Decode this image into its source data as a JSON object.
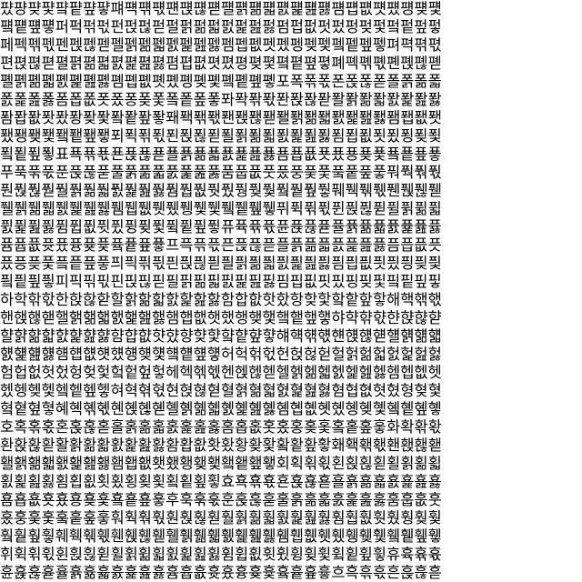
{
  "glyph_sheet": {
    "rows": [
      "퍘퍙퍚퍛퍜퍝퍞퍟퍠퍡퍢퍣퍤퍥퍦퍧퍨퍩퍪퍫퍬퍭퍮퍯퍰퍱퍲퍳퍴퍵퍶퍷",
      "퍸퍹퍺퍻퍼퍽퍾퍿펀펁펂펃펄펅펆펇펈펉펊펋펌펍펎펏펐펑펒펓펔펕펖펗",
      "페펙펚펛펜펝펞펟펠펡펢펣펤펥펦펧펨펩펪펫펬펭펮펯펰펱펲펳펴펵펶펷",
      "편펹펺펻펼펽펾펿폀폁폂폃폄폅폆폇폈평폊폋폌폍폎폏폐폑폒폓폔폕폖폗",
      "폘폙폚폛폜폝폞폟폠폡폢폣폤폥폦폧폨폩폪폫포폭폮폯폰폱폲폳폴폵폶폷",
      "폸폹폺폻폼폽폾폿퐀퐁퐂퐃퐄퐅퐆퐇퐈퐉퐊퐋퐌퐍퐎퐏퐐퐑퐒퐓퐔퐕퐖퐗",
      "퐘퐙퐚퐛퐜퐝퐞퐟퐠퐡퐢퐣퐤퐥퐦퐧퐨퐩퐪퐫퐬퐭퐮퐯퐰퐱퐲퐳퐴퐵퐶퐷",
      "퐸퐹퐺퐻퐼퐽퐾퐿푀푁푂푃푄푅푆푇푈푉푊푋푌푍푎푏푐푑푒푓푔푕푖푗",
      "푘푙푚푛표푝푞푟푠푡푢푣푤푥푦푧푨푩푪푫푬푭푮푯푰푱푲푳푴푵푶푷",
      "푸푹푺푻푼푽푾푿풀풁풂풃풄풅풆풇품풉풊풋풌풍풎풏풐풑풒풓풔풕풖풗",
      "풘풙풚풛풜풝풞풟풠풡풢풣풤풥풦풧풨풩풪풫풬풭풮풯풰풱풲풳풴풵풶풷",
      "풸풹풺풻풼풽풾풿퓀퓁퓂퓃퓄퓅퓆퓇퓈퓉퓊퓋퓌퓍퓎퓏퓐퓑퓒퓓퓔퓕퓖퓗",
      "퓘퓙퓚퓛퓜퓝퓞퓟퓠퓡퓢퓣퓤퓥퓦퓧퓨퓩퓪퓫퓬퓭퓮퓯퓰퓱퓲퓳퓴퓵퓶퓷",
      "퓸퓹퓺퓻퓼퓽퓾퓿픀픁픂픃프픅픆픇픈픉픊픋플픍픎픏픐픑픒픓픔픕픖픗",
      "픘픙픚픛픜픝픞픟픠픡픢픣픤픥픦픧픨픩픪픫픬픭픮픯픰픱픲픳픴픵픶픷",
      "픸픹픺픻피픽픾픿핀핁핂핃필핅핆핇핈핉핊핋핌핍핎핏핐핑핒핓핔핕핖핗",
      "하학핚핛한핝핞핟할핡핢핣핤핥핦핧함합핪핫핬항핮핯핰핱핲핳해핵핶핷",
      "핸핹핺핻핼핽핾핿햀햁햂햃햄햅햆햇했행햊햋햌햍햎햏햐햑햒햓햔햕햖햗",
      "햘햙햚햛햜햝햞햟햠햡햢햣햤향햦햧햨햩햪햫햬햭햮햯햰햱햲햳햴햵햶햷",
      "햸햹햺햻햼햽햾햿헀헁헂헃헄헅헆헇허헉헊헋헌헍헎헏헐헑헒헓헔헕헖헗",
      "험헙헚헛헜헝헞헟헠헡헢헣헤헥헦헧헨헩헪헫헬헭헮헯헰헱헲헳헴헵헶헷",
      "헸헹헺헻헼헽헾헿혀혁혂혃현혅혆혇혈혉혊혋혌혍혎혏혐협혒혓혔형혖혗",
      "혘혙혚혛혜혝혞혟혠혡혢혣혤혥혦혧혨혩혪혫혬혭혮혯혰혱혲혳혴혵혶혷",
      "호혹혺혻혼혽혾혿홀홁홂홃홄홅홆홇홈홉홊홋홌홍홎홏홐홑홒홓화확홖홗",
      "환홙홚홛활홝홞홟홠홡홢홣홤홥홦홧홨황홪홫홬홭홮홯홰홱홲홳홴홵홶홷",
      "홸홹홺홻홼홽홾홿횀횁횂횃횄횅횆횇횈횉횊횋회획횎횏횐횑횒횓횔횕횖횗",
      "횘횙횚횛횜횝횞횟횠횡횢횣횤횥횦횧효횩횪횫횬횭횮횯횰횱횲횳횴횵횶횷",
      "횸횹횺횻횼횽횾횿훀훁훂훃후훅훆훇훈훉훊훋훌훍훎훏훐훑훒훓훔훕훖훗",
      "훘훙훚훛훜훝훞훟훠훡훢훣훤훥훦훧훨훩훪훫훬훭훮훯훰훱훲훳훴훵훶훷",
      "훸훹훺훻훼훽훾훿휀휁휂휃휄휅휆휇휈휉휊휋휌휍휎휏휐휑휒휓휔휕휖휗",
      "휘휙휚휛휜휝휞휟휠휡휢휣휤휥휦휧휨휩휪휫휬휭휮휯휰휱휲휳휴휵휶휷",
      "휸휹휺휻휼휽휾휿흀흁흂흃흄흅흆흇흈흉흊흋흌흍흎흏흐흑흒흓흔흕흖흗",
      "흘흙흚흛흜흝흞흟흠흡흢흣흤흥흦흧흨흩흪흫희흭흮흯흰흱흲흳흴흵흶흷",
      "흸흹흺흻흼흽흾흿힀힁힂힃힄힅힆힇히힉힊힋힌힍힎힏힐힑힒힓힔힕힖힗",
      "힘힙힚힛힜힝힞힟힠힡힢힣힤힥힦힧힨힩힪힫힬힭힮힯ힰힱힲힳힴힵힶힷ",
      "ힸힹힺힻힼힽힾힿퟀퟁퟂퟃퟄퟅퟆ퟇퟈퟉퟊ퟋퟌퟍퟎퟏퟐퟑퟒퟓퟔퟕퟖퟗ",
      "ퟘퟙퟚퟛퟜퟝퟞퟟퟠퟡퟢퟣퟤퟥퟦퟧퟨퟩퟪퟫퟬퟭퟮퟯퟰퟱퟲퟳퟴퟵퟶퟷ"
    ]
  }
}
